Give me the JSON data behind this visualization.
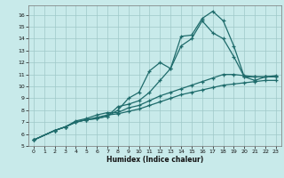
{
  "xlabel": "Humidex (Indice chaleur)",
  "bg_color": "#c8eaea",
  "grid_color": "#9fc8c8",
  "line_color": "#1e6b6b",
  "xlim": [
    -0.5,
    23.5
  ],
  "ylim": [
    5,
    16.8
  ],
  "xticks": [
    0,
    1,
    2,
    3,
    4,
    5,
    6,
    7,
    8,
    9,
    10,
    11,
    12,
    13,
    14,
    15,
    16,
    17,
    18,
    19,
    20,
    21,
    22,
    23
  ],
  "yticks": [
    5,
    6,
    7,
    8,
    9,
    10,
    11,
    12,
    13,
    14,
    15,
    16
  ],
  "s1_x": [
    0,
    2,
    3,
    4,
    5,
    6,
    7,
    8,
    9,
    10,
    11,
    12,
    13,
    14,
    15,
    16,
    17,
    18,
    19,
    20,
    21,
    22,
    23
  ],
  "s1_y": [
    5.5,
    6.3,
    6.6,
    7.0,
    7.2,
    7.3,
    7.5,
    8.0,
    9.0,
    9.5,
    11.3,
    12.0,
    11.5,
    14.2,
    14.3,
    15.7,
    16.3,
    15.5,
    13.4,
    10.8,
    10.8,
    10.8,
    10.8
  ],
  "s2_x": [
    0,
    2,
    3,
    4,
    5,
    6,
    7,
    8,
    9,
    10,
    11,
    12,
    13,
    14,
    15,
    16,
    17,
    18,
    19,
    20,
    21,
    22,
    23
  ],
  "s2_y": [
    5.5,
    6.3,
    6.6,
    7.0,
    7.2,
    7.3,
    7.5,
    8.3,
    8.5,
    8.8,
    9.5,
    10.5,
    11.5,
    13.4,
    14.0,
    15.5,
    14.5,
    14.0,
    12.5,
    10.8,
    10.5,
    10.8,
    10.8
  ],
  "s3_x": [
    0,
    2,
    3,
    4,
    5,
    6,
    7,
    8,
    9,
    10,
    11,
    12,
    13,
    14,
    15,
    16,
    17,
    18,
    19,
    20,
    21,
    22,
    23
  ],
  "s3_y": [
    5.5,
    6.3,
    6.6,
    7.1,
    7.3,
    7.6,
    7.8,
    7.8,
    8.2,
    8.4,
    8.8,
    9.2,
    9.5,
    9.8,
    10.1,
    10.4,
    10.7,
    11.0,
    11.0,
    10.9,
    10.8,
    10.8,
    10.9
  ],
  "s4_x": [
    0,
    2,
    3,
    4,
    5,
    6,
    7,
    8,
    9,
    10,
    11,
    12,
    13,
    14,
    15,
    16,
    17,
    18,
    19,
    20,
    21,
    22,
    23
  ],
  "s4_y": [
    5.5,
    6.3,
    6.6,
    7.0,
    7.2,
    7.4,
    7.6,
    7.7,
    7.9,
    8.1,
    8.4,
    8.7,
    9.0,
    9.3,
    9.5,
    9.7,
    9.9,
    10.1,
    10.2,
    10.3,
    10.4,
    10.5,
    10.5
  ]
}
